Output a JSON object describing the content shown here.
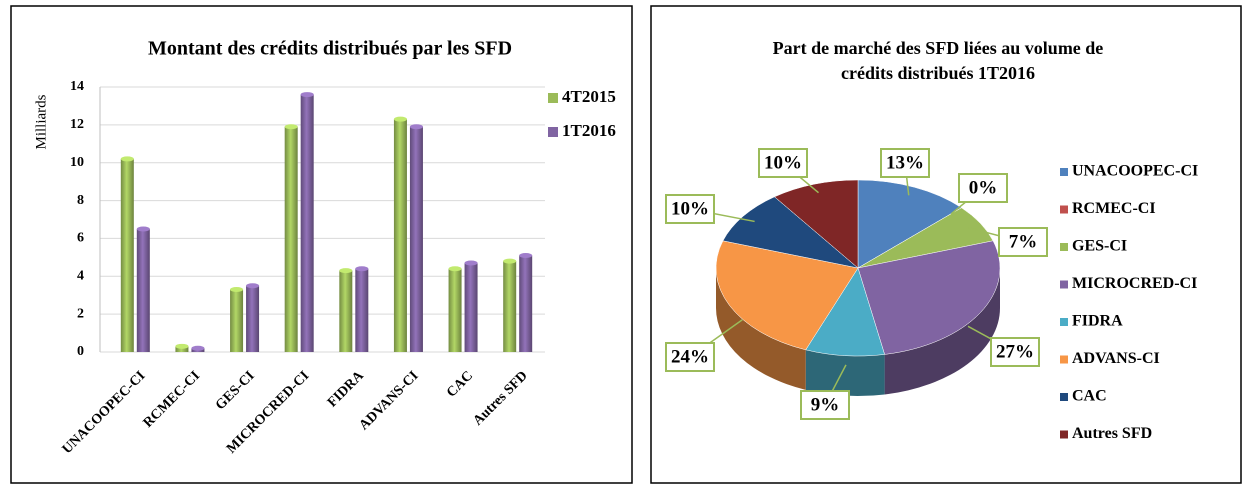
{
  "chart_data": [
    {
      "type": "bar",
      "title": "Montant des crédits distribués par les SFD",
      "y_label": "Milliards",
      "categories": [
        "UNACOOPEC-CI",
        "RCMEC-CI",
        "GES-CI",
        "MICROCRED-CI",
        "FIDRA",
        "ADVANS-CI",
        "CAC",
        "Autres SFD"
      ],
      "series": [
        {
          "name": "4T2015",
          "color": "#9bbb59",
          "values": [
            10.2,
            0.3,
            3.3,
            11.9,
            4.3,
            12.3,
            4.4,
            4.8
          ]
        },
        {
          "name": "1T2016",
          "color": "#8064a2",
          "values": [
            6.5,
            0.2,
            3.5,
            13.6,
            4.4,
            11.9,
            4.7,
            5.1
          ]
        }
      ],
      "ylim": [
        0,
        14
      ],
      "yticks": [
        0,
        2,
        4,
        6,
        8,
        10,
        12,
        14
      ],
      "grid": true,
      "legend": "right"
    },
    {
      "type": "pie",
      "title": [
        "Part de marché des SFD liées au volume de",
        "crédits distribués 1T2016"
      ],
      "categories": [
        "UNACOOPEC-CI",
        "RCMEC-CI",
        "GES-CI",
        "MICROCRED-CI",
        "FIDRA",
        "ADVANS-CI",
        "CAC",
        "Autres SFD"
      ],
      "values": [
        13,
        0,
        7,
        27,
        9,
        24,
        10,
        10
      ],
      "value_labels": [
        "13%",
        "0%",
        "7%",
        "27%",
        "9%",
        "24%",
        "10%",
        "10%"
      ],
      "colors": [
        "#4f81bd",
        "#c0504d",
        "#9bbb59",
        "#8064a2",
        "#4bacc6",
        "#f79646",
        "#1f497d",
        "#7f2626"
      ],
      "legend": "right"
    }
  ]
}
